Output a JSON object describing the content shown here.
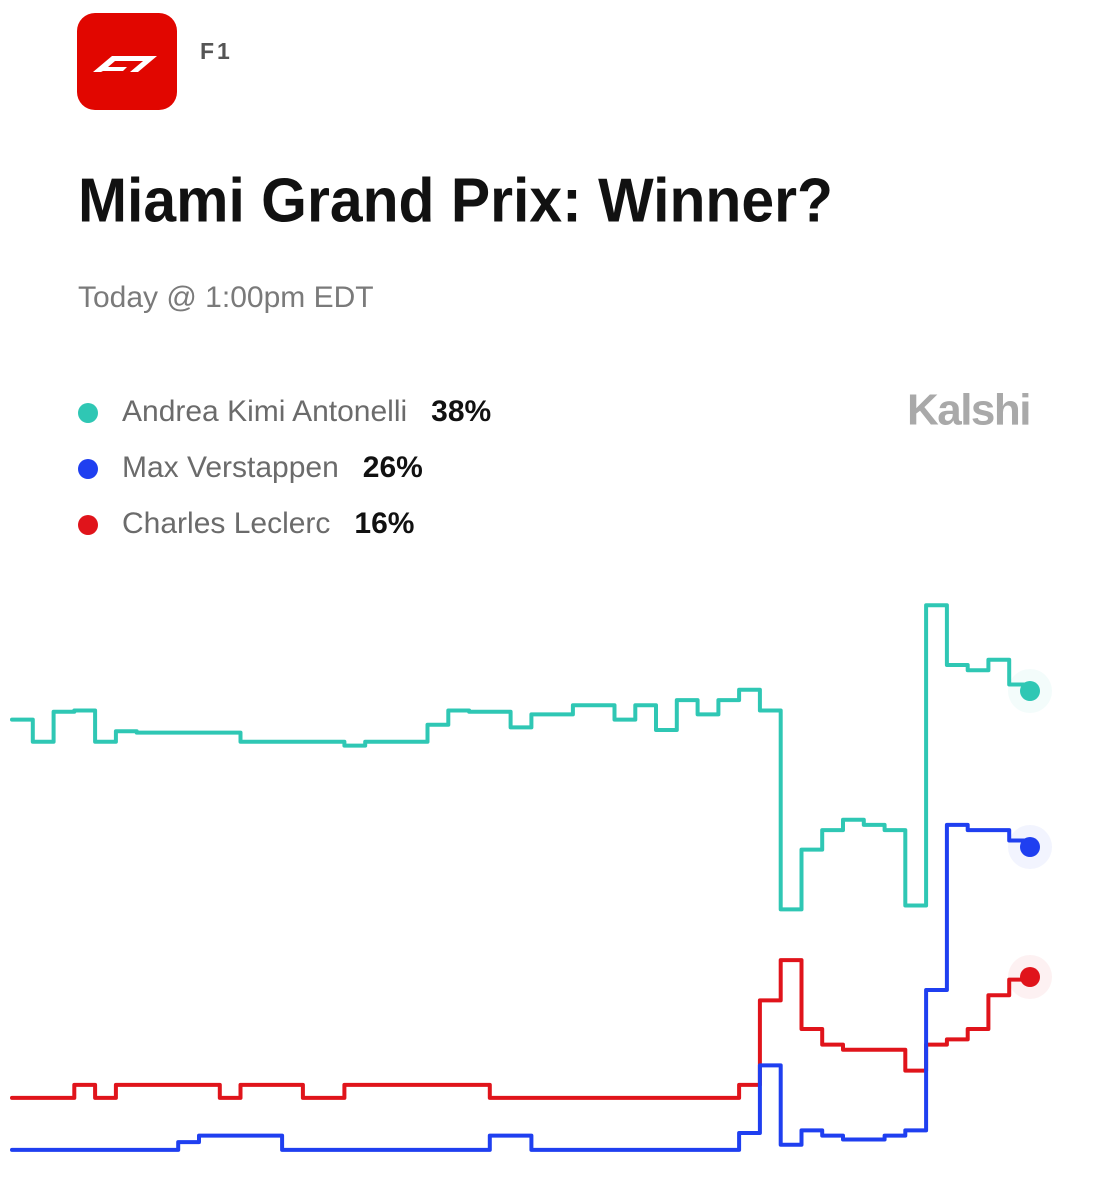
{
  "chart_data": {
    "type": "line",
    "source": "F1",
    "title": "Miami Grand Prix: Winner?",
    "subtitle": "Today @ 1:00pm EDT",
    "brand": "Kalshi",
    "ylim": [
      0,
      50
    ],
    "series": [
      {
        "name": "Andrea Kimi Antonelli",
        "color": "#2fc7b4",
        "current_value": {
          "value": 38,
          "label": "38%"
        },
        "values": [
          35.8,
          34.1,
          36.4,
          36.5,
          34.1,
          34.9,
          34.8,
          34.8,
          34.8,
          34.8,
          34.8,
          34.1,
          34.1,
          34.1,
          34.1,
          34.1,
          33.8,
          34.1,
          34.1,
          34.1,
          35.4,
          36.5,
          36.4,
          36.4,
          35.2,
          36.2,
          36.2,
          36.9,
          36.9,
          35.8,
          36.9,
          35.0,
          37.3,
          36.2,
          37.3,
          38.1,
          36.5,
          21.2,
          25.8,
          27.3,
          28.1,
          27.7,
          27.3,
          21.5,
          44.6,
          40.0,
          39.6,
          40.4,
          38.5,
          38
        ]
      },
      {
        "name": "Max Verstappen",
        "color": "#1f3ff0",
        "current_value": {
          "value": 26,
          "label": "26%"
        },
        "values": [
          2.7,
          2.7,
          2.7,
          2.7,
          2.7,
          2.7,
          2.7,
          2.7,
          3.3,
          3.8,
          3.8,
          3.8,
          3.8,
          2.7,
          2.7,
          2.7,
          2.7,
          2.7,
          2.7,
          2.7,
          2.7,
          2.7,
          2.7,
          3.8,
          3.8,
          2.7,
          2.7,
          2.7,
          2.7,
          2.7,
          2.7,
          2.7,
          2.7,
          2.7,
          2.7,
          4.0,
          9.2,
          3.1,
          4.2,
          3.8,
          3.5,
          3.5,
          3.8,
          4.2,
          15.0,
          27.7,
          27.3,
          27.3,
          26.5,
          26
        ]
      },
      {
        "name": "Charles Leclerc",
        "color": "#e0141b",
        "current_value": {
          "value": 16,
          "label": "16%"
        },
        "values": [
          6.7,
          6.7,
          6.7,
          7.7,
          6.7,
          7.7,
          7.7,
          7.7,
          7.7,
          7.7,
          6.7,
          7.7,
          7.7,
          7.7,
          6.7,
          6.7,
          7.7,
          7.7,
          7.7,
          7.7,
          7.7,
          7.7,
          7.7,
          6.7,
          6.7,
          6.7,
          6.7,
          6.7,
          6.7,
          6.7,
          6.7,
          6.7,
          6.7,
          6.7,
          6.7,
          7.7,
          14.2,
          17.3,
          12.0,
          10.8,
          10.4,
          10.4,
          10.4,
          8.8,
          10.8,
          11.2,
          12.0,
          14.6,
          15.8,
          16
        ]
      }
    ]
  }
}
